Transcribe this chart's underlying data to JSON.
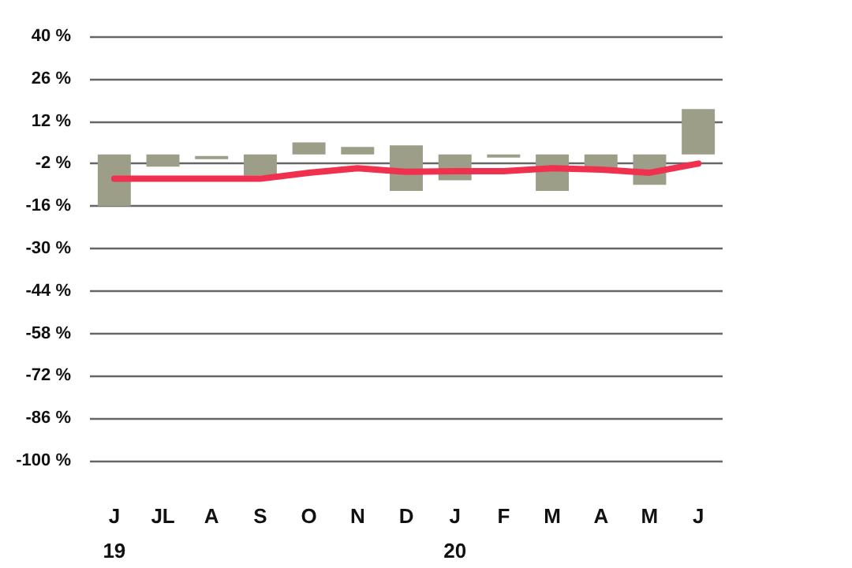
{
  "chart_data": {
    "type": "bar",
    "categories": [
      "J\n19",
      "JL",
      "A",
      "S",
      "O",
      "N",
      "D",
      "J\n20",
      "F",
      "M",
      "A",
      "M",
      "J"
    ],
    "series": [
      {
        "color": "#9c9e88",
        "base": [
          1,
          1,
          0.5,
          1,
          1,
          1,
          4,
          1,
          1,
          1,
          1,
          1,
          1
        ],
        "values": [
          -17,
          -4,
          -1,
          -7,
          4,
          2.5,
          -15,
          -8.5,
          -1,
          -12,
          -5,
          -10,
          15
        ]
      },
      {
        "type": "line",
        "color": "#f0304f",
        "values": [
          -7,
          -7,
          -7,
          -7,
          -5,
          -3.5,
          -4.7,
          -4.5,
          -4.5,
          -3.5,
          -4,
          -5,
          -2
        ]
      }
    ],
    "ylim": [
      -100,
      40
    ],
    "yticks": [
      {
        "value": -100,
        "label": "-100 %"
      },
      {
        "value": -86,
        "label": "-86 %"
      },
      {
        "value": -72,
        "label": "-72 %"
      },
      {
        "value": -58,
        "label": "-58 %"
      },
      {
        "value": -44,
        "label": "-44 %"
      },
      {
        "value": -30,
        "label": "-30 %"
      },
      {
        "value": -16,
        "label": "-16 %"
      },
      {
        "value": -2,
        "label": "-2 %"
      },
      {
        "value": 12,
        "label": "12 %"
      },
      {
        "value": 26,
        "label": "26 %"
      },
      {
        "value": 40,
        "label": "40 %"
      }
    ],
    "grid": "y",
    "marker": "none",
    "line_style": "solid"
  }
}
